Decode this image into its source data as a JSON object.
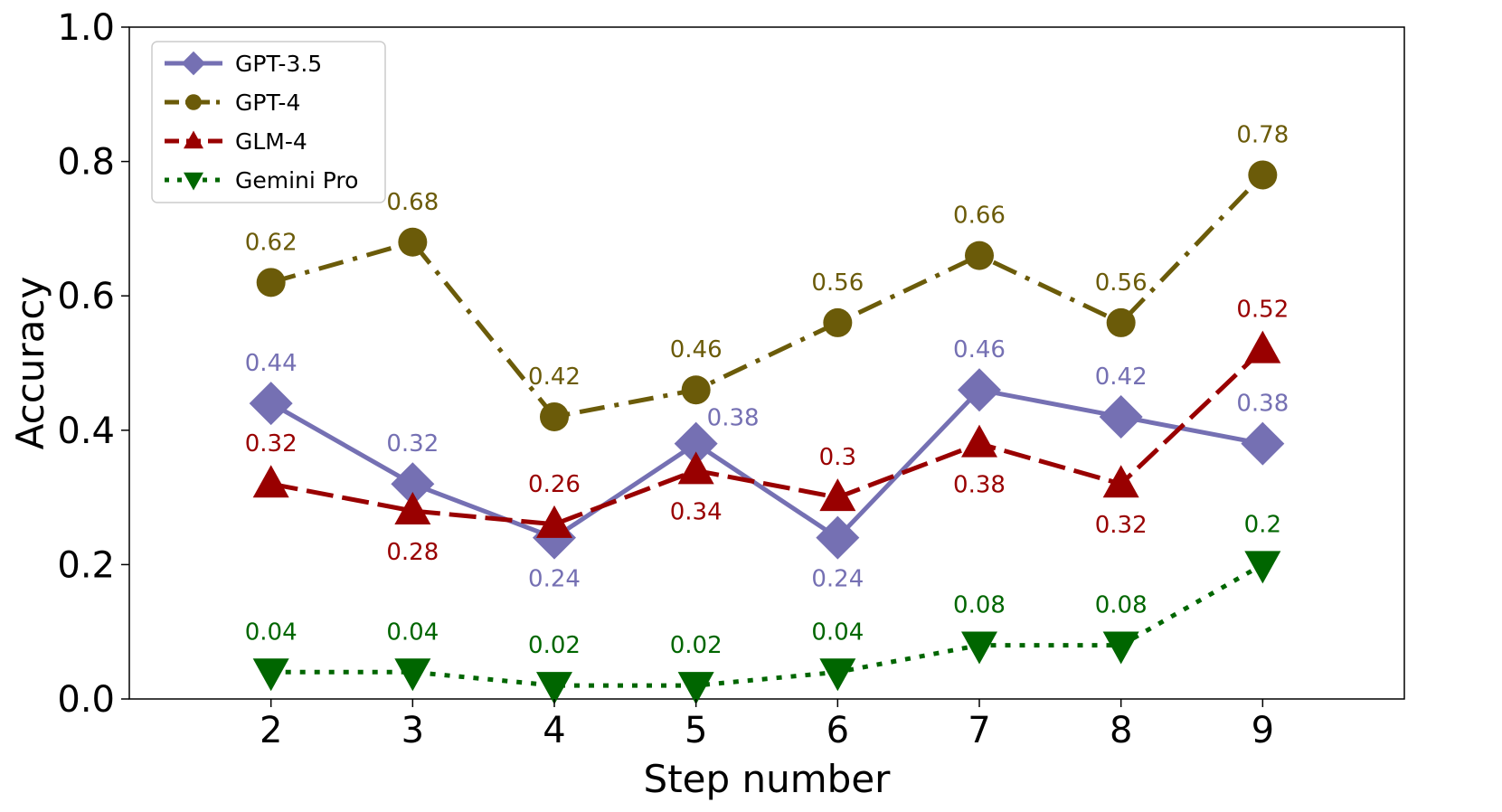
{
  "chart_data": {
    "type": "line",
    "title": "",
    "xlabel": "Step number",
    "ylabel": "Accuracy",
    "x": [
      2,
      3,
      4,
      5,
      6,
      7,
      8,
      9
    ],
    "x_tick_labels": [
      "2",
      "3",
      "4",
      "5",
      "6",
      "7",
      "8",
      "9"
    ],
    "xlim": [
      1,
      10
    ],
    "ylim": [
      0,
      1.0
    ],
    "y_ticks": [
      0.0,
      0.2,
      0.4,
      0.6,
      0.8,
      1.0
    ],
    "y_tick_labels": [
      "0.0",
      "0.2",
      "0.4",
      "0.6",
      "0.8",
      "1.0"
    ],
    "grid": false,
    "legend_position": "top-left",
    "series": [
      {
        "name": "GPT-3.5",
        "values": [
          0.44,
          0.32,
          0.24,
          0.38,
          0.24,
          0.46,
          0.42,
          0.38
        ],
        "labels": [
          "0.44",
          "0.32",
          "0.24",
          "0.38",
          "0.24",
          "0.46",
          "0.42",
          "0.38"
        ],
        "label_placement": [
          "above",
          "above",
          "below",
          "right",
          "below",
          "above",
          "above",
          "above"
        ],
        "color": "#7570b3",
        "line_style": "solid",
        "marker": "diamond"
      },
      {
        "name": "GPT-4",
        "values": [
          0.62,
          0.68,
          0.42,
          0.46,
          0.56,
          0.66,
          0.56,
          0.78
        ],
        "labels": [
          "0.62",
          "0.68",
          "0.42",
          "0.46",
          "0.56",
          "0.66",
          "0.56",
          "0.78"
        ],
        "label_placement": [
          "above",
          "above",
          "above",
          "above",
          "above",
          "above",
          "above",
          "above"
        ],
        "color": "#6b5b09",
        "line_style": "dashdot",
        "marker": "circle"
      },
      {
        "name": "GLM-4",
        "values": [
          0.32,
          0.28,
          0.26,
          0.34,
          0.3,
          0.38,
          0.32,
          0.52
        ],
        "labels": [
          "0.32",
          "0.28",
          "0.26",
          "0.34",
          "0.3",
          "0.38",
          "0.32",
          "0.52"
        ],
        "label_placement": [
          "above",
          "below",
          "above",
          "below",
          "above",
          "below",
          "below",
          "above"
        ],
        "color": "#990000",
        "line_style": "dashed",
        "marker": "triangle-up"
      },
      {
        "name": "Gemini Pro",
        "values": [
          0.04,
          0.04,
          0.02,
          0.02,
          0.04,
          0.08,
          0.08,
          0.2
        ],
        "labels": [
          "0.04",
          "0.04",
          "0.02",
          "0.02",
          "0.04",
          "0.08",
          "0.08",
          "0.2"
        ],
        "label_placement": [
          "above",
          "above",
          "above",
          "above",
          "above",
          "above",
          "above",
          "above"
        ],
        "color": "#006600",
        "line_style": "dotted",
        "marker": "triangle-down"
      }
    ]
  }
}
